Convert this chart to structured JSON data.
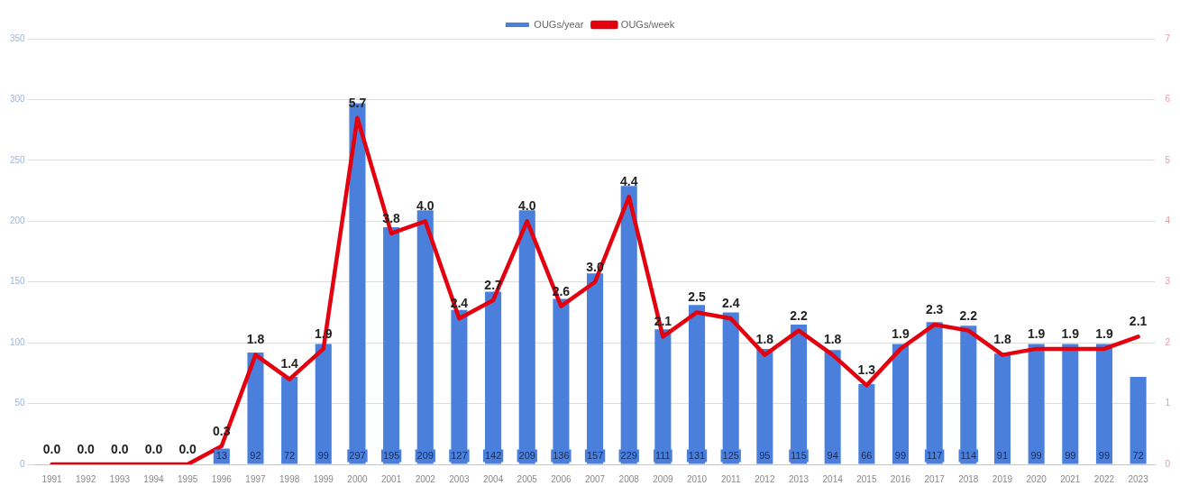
{
  "chart_data": {
    "type": "bar",
    "categories": [
      "1991",
      "1992",
      "1993",
      "1994",
      "1995",
      "1996",
      "1997",
      "1998",
      "1999",
      "2000",
      "2001",
      "2002",
      "2003",
      "2004",
      "2005",
      "2006",
      "2007",
      "2008",
      "2009",
      "2010",
      "2011",
      "2012",
      "2013",
      "2014",
      "2015",
      "2016",
      "2017",
      "2018",
      "2019",
      "2020",
      "2021",
      "2022",
      "2023"
    ],
    "series": [
      {
        "name": "OUGs/year",
        "color": "#4a80dc",
        "values": [
          0,
          0,
          0,
          0,
          0,
          13,
          92,
          72,
          99,
          297,
          195,
          209,
          127,
          142,
          209,
          136,
          157,
          229,
          111,
          131,
          125,
          95,
          115,
          94,
          66,
          99,
          117,
          114,
          91,
          99,
          99,
          99,
          72
        ],
        "value_labels": [
          null,
          null,
          null,
          null,
          null,
          "13",
          "92",
          "72",
          "99",
          "297",
          "195",
          "209",
          "127",
          "142",
          "209",
          "136",
          "157",
          "229",
          "111",
          "131",
          "125",
          "95",
          "115",
          "94",
          "66",
          "99",
          "117",
          "114",
          "91",
          "99",
          "99",
          "99",
          "72"
        ]
      },
      {
        "name": "OUGs/week",
        "type": "line",
        "axis": "y2",
        "color": "#e3000f",
        "marker": "none",
        "values": [
          0.0,
          0.0,
          0.0,
          0.0,
          0.0,
          0.3,
          1.8,
          1.4,
          1.9,
          5.7,
          3.8,
          4.0,
          2.4,
          2.7,
          4.0,
          2.6,
          3.0,
          4.4,
          2.1,
          2.5,
          2.4,
          1.8,
          2.2,
          1.8,
          1.3,
          1.9,
          2.3,
          2.2,
          1.8,
          1.9,
          1.9,
          1.9,
          2.1
        ],
        "value_labels": [
          "0.0",
          "0.0",
          "0.0",
          "0.0",
          "0.0",
          "0.3",
          "1.8",
          "1.4",
          "1.9",
          "5.7",
          "3.8",
          "4.0",
          "2.4",
          "2.7",
          "4.0",
          "2.6",
          "3.0",
          "4.4",
          "2.1",
          "2.5",
          "2.4",
          "1.8",
          "2.2",
          "1.8",
          "1.3",
          "1.9",
          "2.3",
          "2.2",
          "1.8",
          "1.9",
          "1.9",
          "1.9",
          "2.1"
        ]
      }
    ],
    "ylim": [
      0,
      350
    ],
    "yticks": [
      0,
      50,
      100,
      150,
      200,
      250,
      300,
      350
    ],
    "y2lim": [
      0,
      7
    ],
    "y2ticks": [
      0,
      1,
      2,
      3,
      4,
      5,
      6,
      7
    ],
    "grid": "y",
    "legend": "top"
  }
}
